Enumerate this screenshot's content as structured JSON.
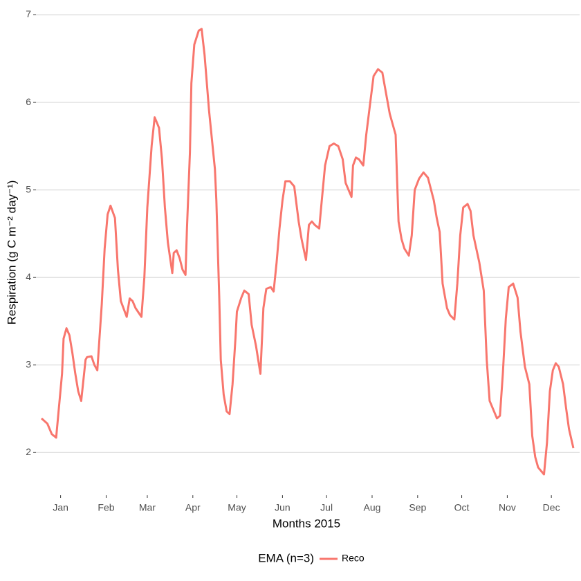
{
  "chart_data": {
    "type": "line",
    "x_label": "Months 2015",
    "y_label": "Respiration (g C m⁻² day⁻¹)",
    "legend_title": "EMA (n=3)",
    "legend_position": "bottom",
    "grid": true,
    "xlim": [
      2,
      364
    ],
    "ylim": [
      1.52,
      7.17
    ],
    "xticks": [
      {
        "value": 15,
        "label": "Jan"
      },
      {
        "value": 46,
        "label": "Feb"
      },
      {
        "value": 74,
        "label": "Mar"
      },
      {
        "value": 105,
        "label": "Apr"
      },
      {
        "value": 135,
        "label": "May"
      },
      {
        "value": 166,
        "label": "Jun"
      },
      {
        "value": 196,
        "label": "Jul"
      },
      {
        "value": 227,
        "label": "Aug"
      },
      {
        "value": 258,
        "label": "Sep"
      },
      {
        "value": 288,
        "label": "Oct"
      },
      {
        "value": 319,
        "label": "Nov"
      },
      {
        "value": 349,
        "label": "Dec"
      }
    ],
    "yticks": [
      2,
      3,
      4,
      5,
      6,
      7
    ],
    "x": [
      2,
      6,
      9,
      12,
      16,
      17,
      19,
      21,
      23,
      25,
      27,
      29,
      32,
      33,
      36,
      38,
      40,
      43,
      45,
      47,
      49,
      52,
      54,
      56,
      60,
      62,
      64,
      66,
      70,
      72,
      74,
      77,
      79,
      80,
      82,
      84,
      86,
      88,
      91,
      92,
      94,
      96,
      98,
      100,
      101,
      103,
      104,
      106,
      109,
      111,
      113,
      116,
      120,
      121,
      123,
      124,
      126,
      128,
      130,
      132,
      134,
      135,
      138,
      140,
      143,
      145,
      148,
      151,
      153,
      155,
      158,
      160,
      162,
      164,
      166,
      168,
      171,
      174,
      177,
      179,
      182,
      184,
      186,
      188,
      191,
      193,
      195,
      198,
      201,
      204,
      207,
      209,
      213,
      214,
      216,
      218,
      221,
      223,
      226,
      228,
      231,
      234,
      236,
      239,
      243,
      244,
      245,
      247,
      249,
      252,
      254,
      256,
      259,
      262,
      265,
      269,
      271,
      273,
      275,
      278,
      280,
      283,
      285,
      287,
      289,
      292,
      294,
      296,
      300,
      303,
      305,
      307,
      310,
      312,
      314,
      316,
      318,
      320,
      323,
      326,
      328,
      331,
      334,
      336,
      338,
      340,
      343,
      344,
      346,
      348,
      350,
      352,
      354,
      357,
      359,
      361,
      364
    ],
    "series": [
      {
        "name": "Reco",
        "color": "#F8766D",
        "values": [
          2.39,
          2.33,
          2.21,
          2.17,
          2.9,
          3.3,
          3.42,
          3.34,
          3.14,
          2.9,
          2.7,
          2.59,
          3.06,
          3.09,
          3.1,
          3.0,
          2.94,
          3.69,
          4.33,
          4.72,
          4.82,
          4.68,
          4.09,
          3.73,
          3.55,
          3.76,
          3.73,
          3.65,
          3.55,
          4.0,
          4.8,
          5.51,
          5.83,
          5.79,
          5.71,
          5.35,
          4.8,
          4.4,
          4.05,
          4.28,
          4.31,
          4.22,
          4.09,
          4.03,
          4.56,
          5.43,
          6.22,
          6.66,
          6.82,
          6.84,
          6.54,
          5.91,
          5.24,
          4.88,
          3.77,
          3.06,
          2.66,
          2.47,
          2.44,
          2.78,
          3.3,
          3.61,
          3.77,
          3.85,
          3.81,
          3.46,
          3.22,
          2.9,
          3.65,
          3.87,
          3.89,
          3.84,
          4.17,
          4.56,
          4.88,
          5.1,
          5.1,
          5.04,
          4.64,
          4.44,
          4.2,
          4.6,
          4.64,
          4.6,
          4.56,
          4.92,
          5.28,
          5.5,
          5.53,
          5.5,
          5.35,
          5.08,
          4.92,
          5.28,
          5.37,
          5.35,
          5.28,
          5.63,
          6.03,
          6.3,
          6.38,
          6.34,
          6.15,
          5.87,
          5.63,
          5.12,
          4.64,
          4.44,
          4.33,
          4.25,
          4.48,
          5.0,
          5.13,
          5.2,
          5.14,
          4.88,
          4.68,
          4.52,
          3.93,
          3.65,
          3.57,
          3.52,
          3.93,
          4.48,
          4.8,
          4.84,
          4.76,
          4.48,
          4.17,
          3.85,
          3.06,
          2.59,
          2.47,
          2.39,
          2.42,
          2.9,
          3.53,
          3.89,
          3.93,
          3.77,
          3.38,
          2.98,
          2.78,
          2.19,
          1.95,
          1.83,
          1.77,
          1.75,
          2.11,
          2.7,
          2.94,
          3.02,
          2.98,
          2.78,
          2.51,
          2.27,
          2.05
        ]
      }
    ]
  }
}
